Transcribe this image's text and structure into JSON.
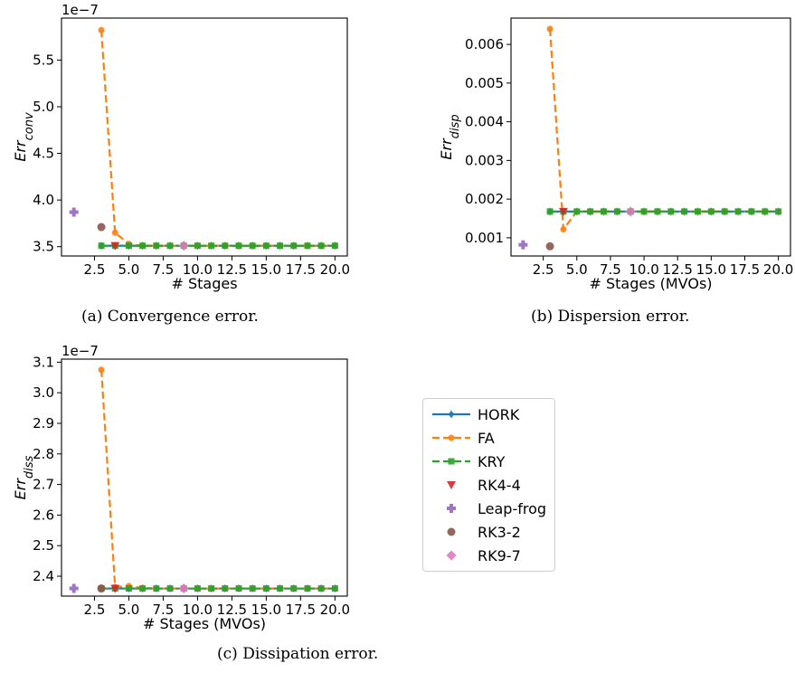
{
  "chart_data": [
    {
      "type": "line",
      "caption": "(a) Convergence error.",
      "xlabel": "# Stages",
      "ylabel_base": "Err",
      "ylabel_sub": "conv",
      "offset_text": "1e−7",
      "xlim": [
        0.1,
        20.9
      ],
      "ylim": [
        3.4,
        5.95
      ],
      "xticks": [
        2.5,
        5.0,
        7.5,
        10.0,
        12.5,
        15.0,
        17.5,
        20.0
      ],
      "xtick_labels": [
        "2.5",
        "5.0",
        "7.5",
        "10.0",
        "12.5",
        "15.0",
        "17.5",
        "20.0"
      ],
      "yticks": [
        3.5,
        4.0,
        4.5,
        5.0,
        5.5
      ],
      "ytick_labels": [
        "3.5",
        "4.0",
        "4.5",
        "5.0",
        "5.5"
      ],
      "series": [
        {
          "name": "HORK",
          "x": [
            3,
            4,
            5,
            6,
            7,
            8,
            9,
            10,
            11,
            12,
            13,
            14,
            15,
            16,
            17,
            18,
            19,
            20
          ],
          "y": [
            3.51,
            3.51,
            3.51,
            3.51,
            3.51,
            3.51,
            3.51,
            3.51,
            3.51,
            3.51,
            3.51,
            3.51,
            3.51,
            3.51,
            3.51,
            3.51,
            3.51,
            3.51
          ]
        },
        {
          "name": "FA",
          "x": [
            3,
            4,
            5,
            6,
            7,
            8,
            9,
            10,
            11,
            12,
            13,
            14,
            15,
            16,
            17,
            18,
            19,
            20
          ],
          "y": [
            5.82,
            3.65,
            3.53,
            3.51,
            3.51,
            3.51,
            3.51,
            3.51,
            3.51,
            3.51,
            3.51,
            3.51,
            3.51,
            3.51,
            3.51,
            3.51,
            3.51,
            3.51
          ]
        },
        {
          "name": "KRY",
          "x": [
            3,
            4,
            5,
            6,
            7,
            8,
            9,
            10,
            11,
            12,
            13,
            14,
            15,
            16,
            17,
            18,
            19,
            20
          ],
          "y": [
            3.51,
            3.51,
            3.51,
            3.51,
            3.51,
            3.51,
            3.51,
            3.51,
            3.51,
            3.51,
            3.51,
            3.51,
            3.51,
            3.51,
            3.51,
            3.51,
            3.51,
            3.51
          ]
        },
        {
          "name": "RK4-4",
          "x": [
            4
          ],
          "y": [
            3.51
          ]
        },
        {
          "name": "Leap-frog",
          "x": [
            1
          ],
          "y": [
            3.87
          ]
        },
        {
          "name": "RK3-2",
          "x": [
            3
          ],
          "y": [
            3.71
          ]
        },
        {
          "name": "RK9-7",
          "x": [
            9
          ],
          "y": [
            3.51
          ]
        }
      ]
    },
    {
      "type": "line",
      "caption": "(b) Dispersion error.",
      "xlabel": "# Stages (MVOs)",
      "ylabel_base": "Err",
      "ylabel_sub": "disp",
      "offset_text": "",
      "xlim": [
        0.1,
        20.9
      ],
      "ylim": [
        0.00053,
        0.00668
      ],
      "xticks": [
        2.5,
        5.0,
        7.5,
        10.0,
        12.5,
        15.0,
        17.5,
        20.0
      ],
      "xtick_labels": [
        "2.5",
        "5.0",
        "7.5",
        "10.0",
        "12.5",
        "15.0",
        "17.5",
        "20.0"
      ],
      "yticks": [
        0.001,
        0.002,
        0.003,
        0.004,
        0.005,
        0.006
      ],
      "ytick_labels": [
        "0.001",
        "0.002",
        "0.003",
        "0.004",
        "0.005",
        "0.006"
      ],
      "series": [
        {
          "name": "HORK",
          "x": [
            3,
            4,
            5,
            6,
            7,
            8,
            9,
            10,
            11,
            12,
            13,
            14,
            15,
            16,
            17,
            18,
            19,
            20
          ],
          "y": [
            0.00168,
            0.00168,
            0.00168,
            0.00168,
            0.00168,
            0.00168,
            0.00168,
            0.00168,
            0.00168,
            0.00168,
            0.00168,
            0.00168,
            0.00168,
            0.00168,
            0.00168,
            0.00168,
            0.00168,
            0.00168
          ]
        },
        {
          "name": "FA",
          "x": [
            3,
            4,
            5,
            6,
            7,
            8,
            9,
            10,
            11,
            12,
            13,
            14,
            15,
            16,
            17,
            18,
            19,
            20
          ],
          "y": [
            0.0064,
            0.00122,
            0.00168,
            0.00168,
            0.00168,
            0.00168,
            0.00168,
            0.00168,
            0.00168,
            0.00168,
            0.00168,
            0.00168,
            0.00168,
            0.00168,
            0.00168,
            0.00168,
            0.00168,
            0.00168
          ]
        },
        {
          "name": "KRY",
          "x": [
            3,
            4,
            5,
            6,
            7,
            8,
            9,
            10,
            11,
            12,
            13,
            14,
            15,
            16,
            17,
            18,
            19,
            20
          ],
          "y": [
            0.00168,
            0.00168,
            0.00168,
            0.00168,
            0.00168,
            0.00168,
            0.00168,
            0.00168,
            0.00168,
            0.00168,
            0.00168,
            0.00168,
            0.00168,
            0.00168,
            0.00168,
            0.00168,
            0.00168,
            0.00168
          ]
        },
        {
          "name": "RK4-4",
          "x": [
            4
          ],
          "y": [
            0.00168
          ]
        },
        {
          "name": "Leap-frog",
          "x": [
            1
          ],
          "y": [
            0.00082
          ]
        },
        {
          "name": "RK3-2",
          "x": [
            3
          ],
          "y": [
            0.00078
          ]
        },
        {
          "name": "RK9-7",
          "x": [
            9
          ],
          "y": [
            0.00168
          ]
        }
      ]
    },
    {
      "type": "line",
      "caption": "(c) Dissipation error.",
      "xlabel": "# Stages (MVOs)",
      "ylabel_base": "Err",
      "ylabel_sub": "diss",
      "offset_text": "1e−7",
      "xlim": [
        0.1,
        20.9
      ],
      "ylim": [
        2.335,
        3.11
      ],
      "xticks": [
        2.5,
        5.0,
        7.5,
        10.0,
        12.5,
        15.0,
        17.5,
        20.0
      ],
      "xtick_labels": [
        "2.5",
        "5.0",
        "7.5",
        "10.0",
        "12.5",
        "15.0",
        "17.5",
        "20.0"
      ],
      "yticks": [
        2.4,
        2.5,
        2.6,
        2.7,
        2.8,
        2.9,
        3.0,
        3.1
      ],
      "ytick_labels": [
        "2.4",
        "2.5",
        "2.6",
        "2.7",
        "2.8",
        "2.9",
        "3.0",
        "3.1"
      ],
      "series": [
        {
          "name": "HORK",
          "x": [
            3,
            4,
            5,
            6,
            7,
            8,
            9,
            10,
            11,
            12,
            13,
            14,
            15,
            16,
            17,
            18,
            19,
            20
          ],
          "y": [
            2.36,
            2.36,
            2.36,
            2.36,
            2.36,
            2.36,
            2.36,
            2.36,
            2.36,
            2.36,
            2.36,
            2.36,
            2.36,
            2.36,
            2.36,
            2.36,
            2.36,
            2.36
          ]
        },
        {
          "name": "FA",
          "x": [
            3,
            4,
            5,
            6,
            7,
            8,
            9,
            10,
            11,
            12,
            13,
            14,
            15,
            16,
            17,
            18,
            19,
            20
          ],
          "y": [
            3.075,
            2.365,
            2.368,
            2.362,
            2.36,
            2.36,
            2.36,
            2.36,
            2.36,
            2.36,
            2.36,
            2.36,
            2.36,
            2.36,
            2.36,
            2.36,
            2.36,
            2.36
          ]
        },
        {
          "name": "KRY",
          "x": [
            3,
            4,
            5,
            6,
            7,
            8,
            9,
            10,
            11,
            12,
            13,
            14,
            15,
            16,
            17,
            18,
            19,
            20
          ],
          "y": [
            2.36,
            2.36,
            2.36,
            2.36,
            2.36,
            2.36,
            2.36,
            2.36,
            2.36,
            2.36,
            2.36,
            2.36,
            2.36,
            2.36,
            2.36,
            2.36,
            2.36,
            2.36
          ]
        },
        {
          "name": "RK4-4",
          "x": [
            4
          ],
          "y": [
            2.36
          ]
        },
        {
          "name": "Leap-frog",
          "x": [
            1
          ],
          "y": [
            2.36
          ]
        },
        {
          "name": "RK3-2",
          "x": [
            3
          ],
          "y": [
            2.36
          ]
        },
        {
          "name": "RK9-7",
          "x": [
            9
          ],
          "y": [
            2.36
          ]
        }
      ]
    }
  ],
  "legend": [
    {
      "name": "HORK",
      "color": "#1f77b4",
      "style": "solid",
      "marker": "diamond-thin"
    },
    {
      "name": "FA",
      "color": "#ff7f0e",
      "style": "dashed",
      "marker": "circle-small"
    },
    {
      "name": "KRY",
      "color": "#2ca02c",
      "style": "dashed",
      "marker": "square-small"
    },
    {
      "name": "RK4-4",
      "color": "#d62728",
      "style": "none",
      "marker": "triangle-down"
    },
    {
      "name": "Leap-frog",
      "color": "#9467bd",
      "style": "none",
      "marker": "plus-filled"
    },
    {
      "name": "RK3-2",
      "color": "#8c564b",
      "style": "none",
      "marker": "circle"
    },
    {
      "name": "RK9-7",
      "color": "#e377c2",
      "style": "none",
      "marker": "diamond"
    }
  ]
}
